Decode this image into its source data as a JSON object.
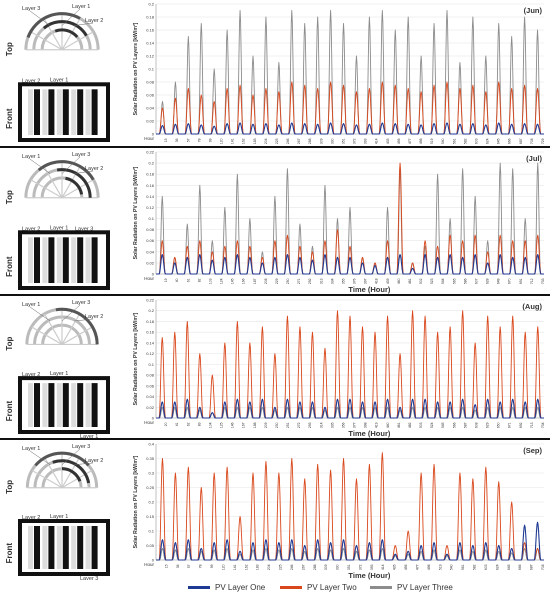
{
  "panels": [
    {
      "month": "(Jun)",
      "show_xlabel": false,
      "layer_labels_top": [
        "Layer 3",
        "Layer 1",
        "Layer 2"
      ],
      "layer_labels_front": [
        "Layer 2",
        "Layer 1"
      ],
      "side_top": "Top",
      "side_front": "Front"
    },
    {
      "month": "(Jul)",
      "show_xlabel": true,
      "layer_labels_top": [
        "Layer 1",
        "Layer 3",
        "Layer 2"
      ],
      "layer_labels_front": [
        "Layer 2",
        "Layer 1",
        "Layer 3"
      ],
      "side_top": "Top",
      "side_front": "Front"
    },
    {
      "month": "(Aug)",
      "show_xlabel": true,
      "layer_labels_top": [
        "Layer 1",
        "Layer 3",
        "Layer 2"
      ],
      "layer_labels_front": [
        "Layer 2",
        "Layer 1",
        "Layer 1"
      ],
      "side_top": "Top",
      "side_front": "Front"
    },
    {
      "month": "(Sep)",
      "show_xlabel": true,
      "layer_labels_top": [
        "Layer 1",
        "Layer 3",
        "Layer 2"
      ],
      "layer_labels_front": [
        "Layer 2",
        "Layer 1",
        "Layer 3"
      ],
      "side_top": "Top",
      "side_front": "Front"
    }
  ],
  "common": {
    "ylabel": "Solar Radiation on PV Layers [kW/m²]",
    "xlabel": "Time (Hour)",
    "first_tick": "Hour"
  },
  "legend": [
    {
      "name": "PV Layer One",
      "color": "#1f3a93"
    },
    {
      "name": "PV Layer Two",
      "color": "#d9481c"
    },
    {
      "name": "PV Layer Three",
      "color": "#8c8c8c"
    }
  ],
  "chart_data": [
    {
      "type": "line",
      "title": "(Jun)",
      "ylabel": "Solar Radiation on PV Layers [kW/m²]",
      "ylim": [
        0,
        0.2
      ],
      "yticks": [
        0,
        0.02,
        0.04,
        0.06,
        0.08,
        0.1,
        0.12,
        0.14,
        0.16,
        0.18,
        0.2
      ],
      "xticks": [
        "Hour",
        "15",
        "36",
        "57",
        "78",
        "99",
        "120",
        "141",
        "162",
        "183",
        "204",
        "225",
        "246",
        "267",
        "288",
        "309",
        "330",
        "351",
        "372",
        "393",
        "414",
        "435",
        "456",
        "477",
        "498",
        "519",
        "540",
        "561",
        "582",
        "603",
        "624",
        "645",
        "666",
        "687",
        "708",
        "729"
      ],
      "days": 30,
      "series": [
        {
          "name": "PV Layer One",
          "color": "#1f3a93",
          "daily_peaks": [
            0.013,
            0.015,
            0.016,
            0.014,
            0.012,
            0.016,
            0.017,
            0.015,
            0.016,
            0.014,
            0.017,
            0.016,
            0.015,
            0.017,
            0.016,
            0.014,
            0.015,
            0.017,
            0.016,
            0.015,
            0.014,
            0.016,
            0.017,
            0.015,
            0.016,
            0.014,
            0.017,
            0.015,
            0.016,
            0.015
          ]
        },
        {
          "name": "PV Layer Two",
          "color": "#d9481c",
          "daily_peaks": [
            0.04,
            0.055,
            0.07,
            0.06,
            0.05,
            0.07,
            0.075,
            0.06,
            0.07,
            0.065,
            0.08,
            0.075,
            0.07,
            0.08,
            0.075,
            0.065,
            0.07,
            0.08,
            0.075,
            0.07,
            0.065,
            0.075,
            0.08,
            0.07,
            0.075,
            0.065,
            0.08,
            0.07,
            0.075,
            0.07
          ]
        },
        {
          "name": "PV Layer Three",
          "color": "#8c8c8c",
          "daily_peaks": [
            0.05,
            0.08,
            0.15,
            0.17,
            0.1,
            0.16,
            0.19,
            0.12,
            0.18,
            0.11,
            0.19,
            0.17,
            0.18,
            0.19,
            0.17,
            0.12,
            0.18,
            0.19,
            0.16,
            0.18,
            0.12,
            0.17,
            0.19,
            0.11,
            0.18,
            0.12,
            0.17,
            0.15,
            0.18,
            0.16
          ]
        }
      ]
    },
    {
      "type": "line",
      "title": "(Jul)",
      "xlabel": "Time (Hour)",
      "ylabel": "Solar Radiation on PV Layers [kW/m²]",
      "ylim": [
        0,
        0.22
      ],
      "yticks": [
        0,
        0.02,
        0.04,
        0.06,
        0.08,
        0.1,
        0.12,
        0.14,
        0.16,
        0.18,
        0.2,
        0.22
      ],
      "xticks": [
        "Hour",
        "19",
        "40",
        "61",
        "82",
        "103",
        "124",
        "145",
        "166",
        "187",
        "208",
        "229",
        "250",
        "271",
        "292",
        "313",
        "334",
        "355",
        "376",
        "397",
        "418",
        "439",
        "460",
        "481",
        "502",
        "523",
        "544",
        "565",
        "586",
        "607",
        "628",
        "649",
        "670",
        "691",
        "712",
        "733"
      ],
      "days": 31,
      "series": [
        {
          "name": "PV Layer One",
          "color": "#1f3a93",
          "daily_peaks": [
            0.035,
            0.02,
            0.03,
            0.035,
            0.025,
            0.03,
            0.035,
            0.03,
            0.02,
            0.03,
            0.035,
            0.03,
            0.025,
            0.035,
            0.03,
            0.03,
            0.02,
            0.015,
            0.03,
            0.035,
            0.01,
            0.035,
            0.03,
            0.035,
            0.03,
            0.035,
            0.02,
            0.035,
            0.03,
            0.03,
            0.035
          ]
        },
        {
          "name": "PV Layer Two",
          "color": "#d9481c",
          "daily_peaks": [
            0.06,
            0.03,
            0.05,
            0.06,
            0.04,
            0.05,
            0.06,
            0.05,
            0.03,
            0.06,
            0.07,
            0.05,
            0.04,
            0.06,
            0.08,
            0.05,
            0.03,
            0.02,
            0.06,
            0.2,
            0.02,
            0.06,
            0.05,
            0.07,
            0.06,
            0.07,
            0.04,
            0.07,
            0.06,
            0.06,
            0.07
          ]
        },
        {
          "name": "PV Layer Three",
          "color": "#8c8c8c",
          "daily_peaks": [
            0.14,
            0.03,
            0.09,
            0.16,
            0.06,
            0.12,
            0.18,
            0.1,
            0.04,
            0.14,
            0.19,
            0.09,
            0.05,
            0.16,
            0.1,
            0.12,
            0.03,
            0.02,
            0.12,
            0.19,
            0.02,
            0.05,
            0.18,
            0.1,
            0.19,
            0.14,
            0.06,
            0.2,
            0.19,
            0.1,
            0.2
          ]
        }
      ]
    },
    {
      "type": "line",
      "title": "(Aug)",
      "xlabel": "Time (Hour)",
      "ylabel": "Solar Radiation on PV Layers [kW/m²]",
      "ylim": [
        0,
        0.22
      ],
      "yticks": [
        0,
        0.02,
        0.04,
        0.06,
        0.08,
        0.1,
        0.12,
        0.14,
        0.16,
        0.18,
        0.2,
        0.22
      ],
      "xticks": [
        "Hour",
        "20",
        "41",
        "62",
        "83",
        "104",
        "125",
        "146",
        "167",
        "188",
        "209",
        "230",
        "251",
        "272",
        "293",
        "314",
        "335",
        "356",
        "377",
        "398",
        "419",
        "440",
        "461",
        "482",
        "503",
        "524",
        "545",
        "566",
        "587",
        "608",
        "629",
        "650",
        "671",
        "692",
        "713",
        "734"
      ],
      "days": 31,
      "series": [
        {
          "name": "PV Layer One",
          "color": "#1f3a93",
          "daily_peaks": [
            0.03,
            0.03,
            0.035,
            0.02,
            0.01,
            0.03,
            0.035,
            0.03,
            0.035,
            0.02,
            0.035,
            0.03,
            0.03,
            0.02,
            0.035,
            0.035,
            0.03,
            0.03,
            0.035,
            0.02,
            0.035,
            0.035,
            0.03,
            0.03,
            0.035,
            0.025,
            0.035,
            0.03,
            0.035,
            0.03,
            0.035
          ]
        },
        {
          "name": "PV Layer Two",
          "color": "#d9481c",
          "daily_peaks": [
            0.15,
            0.16,
            0.18,
            0.12,
            0.08,
            0.14,
            0.18,
            0.14,
            0.17,
            0.12,
            0.19,
            0.17,
            0.16,
            0.13,
            0.2,
            0.19,
            0.17,
            0.16,
            0.19,
            0.12,
            0.2,
            0.19,
            0.16,
            0.17,
            0.2,
            0.14,
            0.19,
            0.17,
            0.19,
            0.16,
            0.17
          ]
        },
        {
          "name": "PV Layer Three",
          "color": "#8c8c8c",
          "daily_peaks": [
            0.02,
            0.02,
            0.02,
            0.015,
            0.01,
            0.02,
            0.02,
            0.02,
            0.02,
            0.015,
            0.02,
            0.02,
            0.02,
            0.015,
            0.02,
            0.02,
            0.02,
            0.02,
            0.02,
            0.015,
            0.02,
            0.02,
            0.02,
            0.02,
            0.02,
            0.015,
            0.02,
            0.02,
            0.02,
            0.02,
            0.02
          ]
        }
      ]
    },
    {
      "type": "line",
      "title": "(Sep)",
      "xlabel": "Time (Hour)",
      "ylabel": "Solar Radiation on PV Layers [kW/m²]",
      "ylim": [
        0,
        0.4
      ],
      "yticks": [
        0,
        0.05,
        0.1,
        0.15,
        0.2,
        0.25,
        0.3,
        0.35,
        0.4
      ],
      "xticks": [
        "Hour",
        "15",
        "36",
        "57",
        "78",
        "99",
        "120",
        "141",
        "162",
        "183",
        "204",
        "225",
        "246",
        "267",
        "288",
        "309",
        "330",
        "351",
        "372",
        "393",
        "414",
        "435",
        "456",
        "477",
        "498",
        "519",
        "540",
        "561",
        "582",
        "603",
        "624",
        "645",
        "666",
        "687",
        "708"
      ],
      "days": 30,
      "series": [
        {
          "name": "PV Layer One",
          "color": "#1f3a93",
          "daily_peaks": [
            0.07,
            0.06,
            0.07,
            0.04,
            0.06,
            0.07,
            0.03,
            0.06,
            0.07,
            0.06,
            0.07,
            0.05,
            0.07,
            0.06,
            0.07,
            0.05,
            0.06,
            0.07,
            0.02,
            0.03,
            0.05,
            0.06,
            0.02,
            0.06,
            0.05,
            0.06,
            0.05,
            0.04,
            0.12,
            0.13
          ]
        },
        {
          "name": "PV Layer Two",
          "color": "#d9481c",
          "daily_peaks": [
            0.35,
            0.3,
            0.32,
            0.25,
            0.3,
            0.32,
            0.15,
            0.3,
            0.34,
            0.3,
            0.35,
            0.28,
            0.33,
            0.31,
            0.35,
            0.28,
            0.33,
            0.37,
            0.05,
            0.1,
            0.3,
            0.33,
            0.05,
            0.3,
            0.28,
            0.32,
            0.27,
            0.2,
            0.06,
            0.04
          ]
        },
        {
          "name": "PV Layer Three",
          "color": "#8c8c8c",
          "daily_peaks": [
            0.04,
            0.035,
            0.04,
            0.03,
            0.035,
            0.04,
            0.02,
            0.035,
            0.04,
            0.035,
            0.04,
            0.03,
            0.04,
            0.035,
            0.04,
            0.03,
            0.035,
            0.04,
            0.015,
            0.02,
            0.03,
            0.035,
            0.015,
            0.035,
            0.03,
            0.035,
            0.03,
            0.025,
            0.04,
            0.04
          ]
        }
      ]
    }
  ]
}
